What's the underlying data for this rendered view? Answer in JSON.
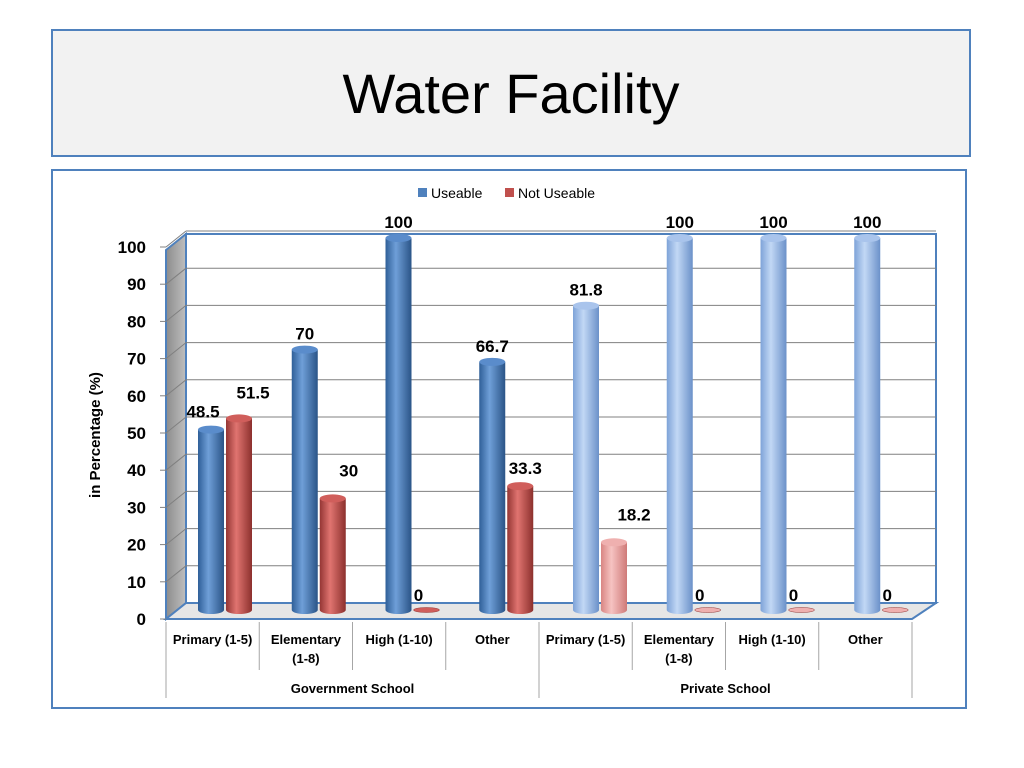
{
  "slide": {
    "title": "Water Facility"
  },
  "chart_data": {
    "type": "bar",
    "title": "",
    "xlabel": "",
    "ylabel": "in  Percentage (%)",
    "ylim": [
      0,
      100
    ],
    "yticks": [
      0,
      10,
      20,
      30,
      40,
      50,
      60,
      70,
      80,
      90,
      100
    ],
    "grid": true,
    "legend": "top",
    "categories": [
      "Primary (1-5)",
      "Elementary (1-8)",
      "High (1-10)",
      "Other",
      "Primary (1-5)",
      "Elementary (1-8)",
      "High (1-10)",
      "Other"
    ],
    "category_lines": [
      [
        "Primary (1-5)"
      ],
      [
        "Elementary",
        "(1-8)"
      ],
      [
        "High (1-10)"
      ],
      [
        "Other"
      ],
      [
        "Primary (1-5)"
      ],
      [
        "Elementary",
        "(1-8)"
      ],
      [
        "High (1-10)"
      ],
      [
        "Other"
      ]
    ],
    "groups": [
      {
        "label": "Government School",
        "categories": [
          0,
          1,
          2,
          3
        ]
      },
      {
        "label": "Private School",
        "categories": [
          4,
          5,
          6,
          7
        ]
      }
    ],
    "series": [
      {
        "name": "Useable",
        "values": [
          48.5,
          70,
          100,
          66.7,
          81.8,
          100,
          100,
          100
        ],
        "labels": [
          "48.5",
          "70",
          "100",
          "66.7",
          "81.8",
          "100",
          "100",
          "100"
        ]
      },
      {
        "name": "Not Useable",
        "values": [
          51.5,
          30,
          0,
          33.3,
          18.2,
          0,
          0,
          0
        ],
        "labels": [
          "51.5",
          "30",
          "0",
          "33.3",
          "18.2",
          "0",
          "0",
          "0"
        ]
      }
    ],
    "colors": {
      "useable_gov": "#4f81bd",
      "useable_priv": "#95b3e3",
      "notuseable_gov": "#c0504d",
      "notuseable_priv": "#e6999a",
      "grid": "#808080",
      "axis_frame": "#4f81bd",
      "side_wall": "#a6a6a6"
    }
  }
}
